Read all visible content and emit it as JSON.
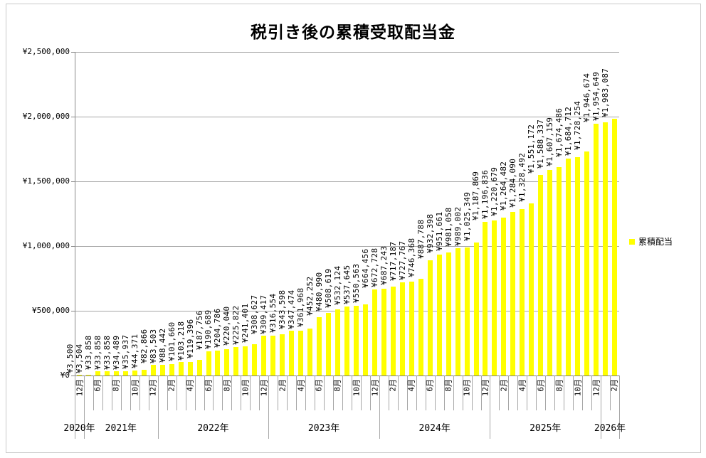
{
  "title": "税引き後の累積受取配当金",
  "legend": {
    "label": "累積配当",
    "marker_color": "#FFFF00"
  },
  "chart_data": {
    "type": "bar",
    "title": "税引き後の累積受取配当金",
    "series_name": "累積配当",
    "bar_color": "#FFFF00",
    "ylim": [
      0,
      2500000
    ],
    "y_tick_interval": 500000,
    "y_tick_labels": [
      "¥0",
      "¥500,000",
      "¥1,000,000",
      "¥1,500,000",
      "¥2,000,000",
      "¥2,500,000"
    ],
    "currency_prefix": "¥",
    "month_suffix": "月",
    "grid": true,
    "legend_position": "right",
    "data_label_rotation_deg": -90,
    "x_tick_label_interval": 2,
    "year_groups": [
      {
        "label": "2020年",
        "count": 1
      },
      {
        "label": "2021年",
        "count": 8
      },
      {
        "label": "2022年",
        "count": 12
      },
      {
        "label": "2023年",
        "count": 12
      },
      {
        "label": "2024年",
        "count": 12
      },
      {
        "label": "2025年",
        "count": 12
      },
      {
        "label": "2026年",
        "count": 2
      }
    ],
    "points": [
      {
        "year": 2020,
        "month": 12,
        "value": 3500
      },
      {
        "year": 2021,
        "month": 5,
        "value": 3504
      },
      {
        "year": 2021,
        "month": 6,
        "value": 33858
      },
      {
        "year": 2021,
        "month": 7,
        "value": 33858
      },
      {
        "year": 2021,
        "month": 8,
        "value": 33858
      },
      {
        "year": 2021,
        "month": 9,
        "value": 34489
      },
      {
        "year": 2021,
        "month": 10,
        "value": 35937
      },
      {
        "year": 2021,
        "month": 11,
        "value": 44371
      },
      {
        "year": 2021,
        "month": 12,
        "value": 82866
      },
      {
        "year": 2022,
        "month": 1,
        "value": 83503
      },
      {
        "year": 2022,
        "month": 2,
        "value": 88442
      },
      {
        "year": 2022,
        "month": 3,
        "value": 101660
      },
      {
        "year": 2022,
        "month": 4,
        "value": 103218
      },
      {
        "year": 2022,
        "month": 5,
        "value": 119396
      },
      {
        "year": 2022,
        "month": 6,
        "value": 187756
      },
      {
        "year": 2022,
        "month": 7,
        "value": 190689
      },
      {
        "year": 2022,
        "month": 8,
        "value": 204786
      },
      {
        "year": 2022,
        "month": 9,
        "value": 220040
      },
      {
        "year": 2022,
        "month": 10,
        "value": 225822
      },
      {
        "year": 2022,
        "month": 11,
        "value": 241401
      },
      {
        "year": 2022,
        "month": 12,
        "value": 308627
      },
      {
        "year": 2023,
        "month": 1,
        "value": 309417
      },
      {
        "year": 2023,
        "month": 2,
        "value": 316554
      },
      {
        "year": 2023,
        "month": 3,
        "value": 343598
      },
      {
        "year": 2023,
        "month": 4,
        "value": 347474
      },
      {
        "year": 2023,
        "month": 5,
        "value": 361968
      },
      {
        "year": 2023,
        "month": 6,
        "value": 452252
      },
      {
        "year": 2023,
        "month": 7,
        "value": 480990
      },
      {
        "year": 2023,
        "month": 8,
        "value": 508619
      },
      {
        "year": 2023,
        "month": 9,
        "value": 532124
      },
      {
        "year": 2023,
        "month": 10,
        "value": 537645
      },
      {
        "year": 2023,
        "month": 11,
        "value": 550563
      },
      {
        "year": 2023,
        "month": 12,
        "value": 664456
      },
      {
        "year": 2024,
        "month": 1,
        "value": 672728
      },
      {
        "year": 2024,
        "month": 2,
        "value": 687243
      },
      {
        "year": 2024,
        "month": 3,
        "value": 717187
      },
      {
        "year": 2024,
        "month": 4,
        "value": 727767
      },
      {
        "year": 2024,
        "month": 5,
        "value": 746368
      },
      {
        "year": 2024,
        "month": 6,
        "value": 887788
      },
      {
        "year": 2024,
        "month": 7,
        "value": 932398
      },
      {
        "year": 2024,
        "month": 8,
        "value": 951661
      },
      {
        "year": 2024,
        "month": 9,
        "value": 981058
      },
      {
        "year": 2024,
        "month": 10,
        "value": 989002
      },
      {
        "year": 2024,
        "month": 11,
        "value": 1025349
      },
      {
        "year": 2024,
        "month": 12,
        "value": 1187869
      },
      {
        "year": 2025,
        "month": 1,
        "value": 1196836
      },
      {
        "year": 2025,
        "month": 2,
        "value": 1220679
      },
      {
        "year": 2025,
        "month": 3,
        "value": 1264482
      },
      {
        "year": 2025,
        "month": 4,
        "value": 1284090
      },
      {
        "year": 2025,
        "month": 5,
        "value": 1328492
      },
      {
        "year": 2025,
        "month": 6,
        "value": 1551172
      },
      {
        "year": 2025,
        "month": 7,
        "value": 1588337
      },
      {
        "year": 2025,
        "month": 8,
        "value": 1607159
      },
      {
        "year": 2025,
        "month": 9,
        "value": 1674486
      },
      {
        "year": 2025,
        "month": 10,
        "value": 1684712
      },
      {
        "year": 2025,
        "month": 11,
        "value": 1728254
      },
      {
        "year": 2025,
        "month": 12,
        "value": 1946674
      },
      {
        "year": 2026,
        "month": 1,
        "value": 1954649
      },
      {
        "year": 2026,
        "month": 2,
        "value": 1983087
      }
    ]
  }
}
